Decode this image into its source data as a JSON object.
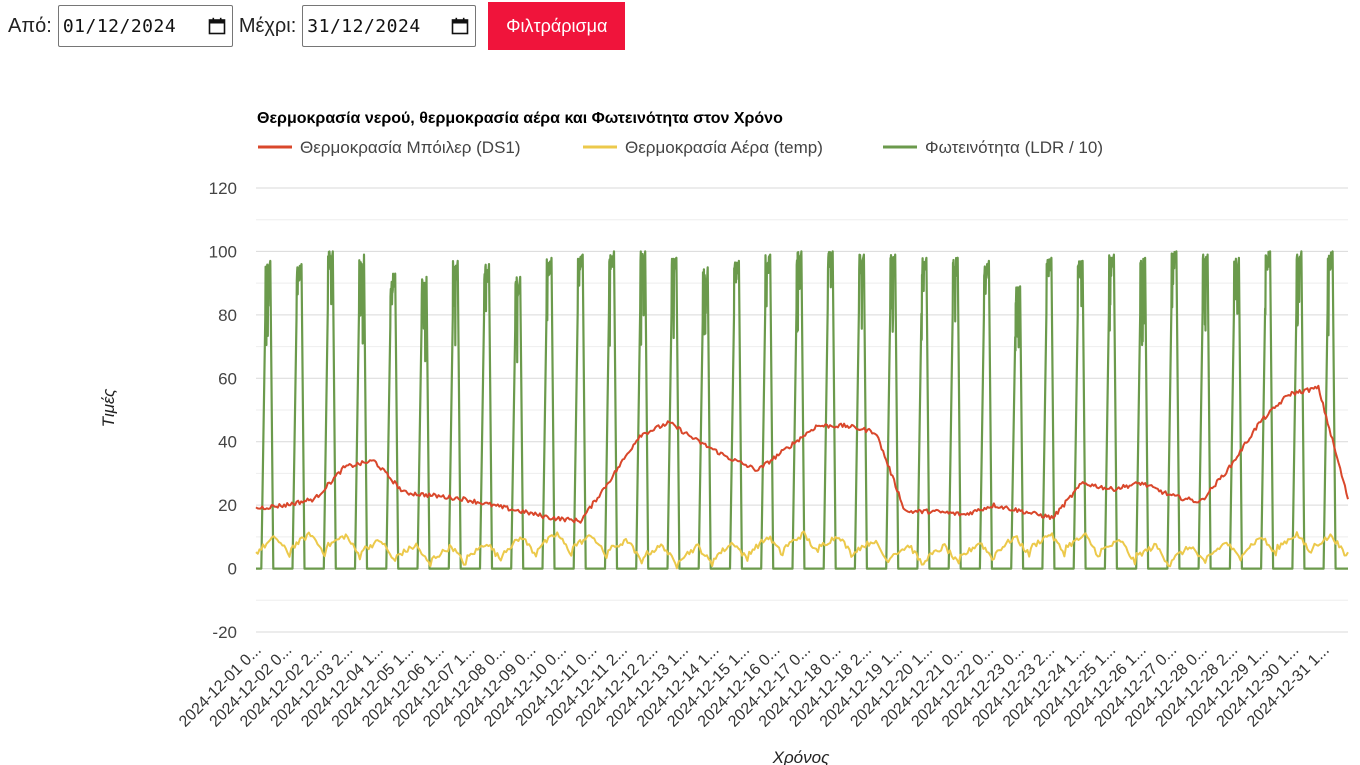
{
  "filter": {
    "from_label": "Από:",
    "from_value": "01/12/2024",
    "to_label": "Μέχρι:",
    "to_value": "31/12/2024",
    "button_label": "Φιλτράρισμα",
    "button_color": "#f0143b"
  },
  "chart_data": {
    "type": "line",
    "title": "Θερμοκρασία νερού, θερμοκρασία αέρα και Φωτεινότητα στον Χρόνο",
    "xlabel": "Χρόνος",
    "ylabel": "Τιμές",
    "ylim": [
      -20,
      120
    ],
    "yticks": [
      -20,
      0,
      20,
      40,
      60,
      80,
      100,
      120
    ],
    "grid": true,
    "legend_position": "top-left",
    "x_tick_labels": [
      "2024-12-01 0...",
      "2024-12-02 0...",
      "2024-12-02 2...",
      "2024-12-03 2...",
      "2024-12-04 1...",
      "2024-12-05 1...",
      "2024-12-06 1...",
      "2024-12-07 1...",
      "2024-12-08 0...",
      "2024-12-09 0...",
      "2024-12-10 0...",
      "2024-12-11 0...",
      "2024-12-11 2...",
      "2024-12-12 2...",
      "2024-12-13 1...",
      "2024-12-14 1...",
      "2024-12-15 1...",
      "2024-12-16 0...",
      "2024-12-17 0...",
      "2024-12-18 0...",
      "2024-12-18 2...",
      "2024-12-19 1...",
      "2024-12-20 1...",
      "2024-12-21 0...",
      "2024-12-22 0...",
      "2024-12-23 0...",
      "2024-12-23 2...",
      "2024-12-24 1...",
      "2024-12-25 1...",
      "2024-12-26 1...",
      "2024-12-27 0...",
      "2024-12-28 0...",
      "2024-12-28 2...",
      "2024-12-29 1...",
      "2024-12-30 1...",
      "2024-12-31 1..."
    ],
    "series": [
      {
        "name": "Θερμοκρασία Μπόιλερ (DS1)",
        "color": "#d9472b",
        "day_points": [
          19,
          20,
          22,
          32,
          34,
          24,
          23,
          22,
          20,
          18,
          16,
          15,
          28,
          42,
          46,
          40,
          35,
          31,
          38,
          45,
          45,
          43,
          18,
          18,
          17,
          20,
          18,
          16,
          27,
          25,
          27,
          23,
          21,
          32,
          46,
          55,
          57,
          22
        ]
      },
      {
        "name": "Θερμοκρασία Αέρα (temp)",
        "color": "#ecc94b",
        "day_range": [
          0,
          14
        ]
      },
      {
        "name": "Φωτεινότητα (LDR / 10)",
        "color": "#6b9a4c",
        "day_peaks": [
          97,
          96,
          100,
          99,
          93,
          92,
          97,
          96,
          92,
          98,
          99,
          100,
          100,
          98,
          95,
          97,
          99,
          100,
          100,
          99,
          99,
          98,
          98,
          97,
          89,
          98,
          97,
          99,
          98,
          100,
          99,
          98,
          100,
          100,
          100
        ],
        "night_value": 0
      }
    ]
  }
}
